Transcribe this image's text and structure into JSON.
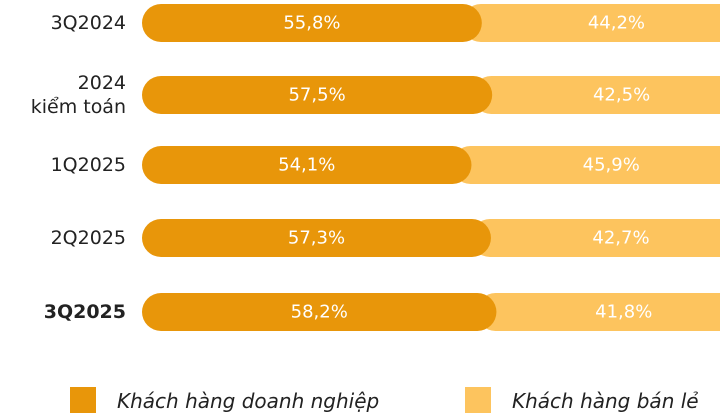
{
  "chart_data": {
    "type": "stacked_bar_horizontal",
    "categories": [
      "3Q2024",
      "2024\nkiểm toán",
      "1Q2025",
      "2Q2025",
      "3Q2025"
    ],
    "bold_category": 4,
    "xlim": [
      0,
      100
    ],
    "series": [
      {
        "name": "Khách hàng doanh nghiệp",
        "color": "#e8960a",
        "values": [
          55.8,
          57.5,
          54.1,
          57.3,
          58.2
        ],
        "value_labels": [
          "55,8%",
          "57,5%",
          "54,1%",
          "57,3%",
          "58,2%"
        ]
      },
      {
        "name": "Khách hàng bán lẻ",
        "color": "#fdc45e",
        "values": [
          44.2,
          42.5,
          45.9,
          42.7,
          41.8
        ],
        "value_labels": [
          "44,2%",
          "42,5%",
          "45,9%",
          "42,7%",
          "41,8%"
        ]
      }
    ]
  }
}
